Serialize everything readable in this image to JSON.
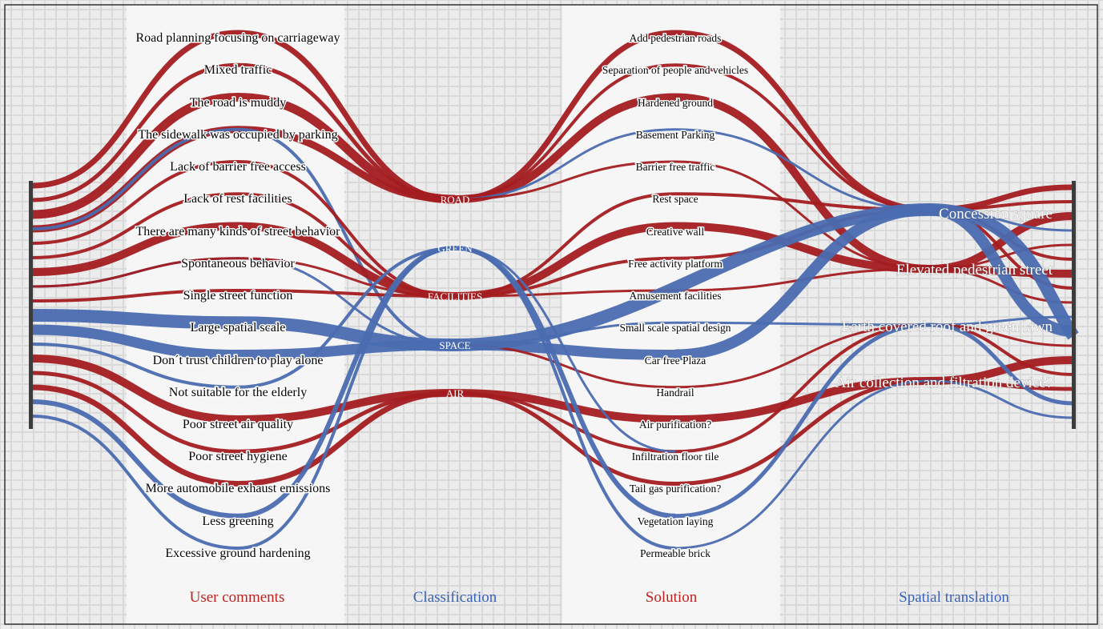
{
  "colors": {
    "red": "#a31c20",
    "blue": "#4a6cb0",
    "red_text": "#c0201e",
    "blue_text": "#3a62b5",
    "axis": "#3c3c3c"
  },
  "headers": {
    "user_comments": "User comments",
    "classification": "Classification",
    "solution": "Solution",
    "spatial_translation": "Spatial translation"
  },
  "user_comments": [
    "Road planning focusing on carriageway",
    "Mixed traffic",
    "The road is muddy",
    "The sidewalk was occupied by parking",
    "Lack of barrier free access",
    "Lack of rest facilities",
    "There are many kinds of street behavior",
    "Spontaneous behavior",
    "Single street function",
    "Large spatial scale",
    "Don´t trust children to play alone",
    "Not suitable for the elderly",
    "Poor street air quality",
    "Poor street hygiene",
    "More automobile exhaust emissions",
    "Less greening",
    "Excessive ground hardening"
  ],
  "classifications": [
    "ROAD",
    "GREEN",
    "FACILITIES",
    "SPACE",
    "AIR"
  ],
  "solutions": [
    "Add pedestrian roads",
    "Separation of people and vehicles",
    "Hardened ground",
    "Basement Parking",
    "Barrier free traffic",
    "Rest space",
    "Creative wall",
    "Free activity platform",
    "Amusement facilities",
    "Small scale spatial design",
    "Car free Plaza",
    "Handrail",
    "Air purification?",
    "Infiltration floor tile",
    "Tail gas purification?",
    "Vegetation laying",
    "Permeable brick"
  ],
  "spatial_translations": [
    "Concession square",
    "Elevated pedestrian street",
    "Earth covered roof and green lawn",
    "Air collection and filtration device?"
  ]
}
